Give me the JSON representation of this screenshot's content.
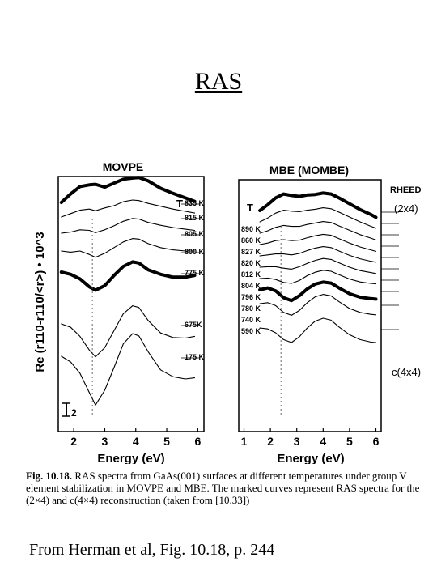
{
  "slide": {
    "title": "RAS",
    "citation": "From Herman et al, Fig. 10.18, p. 244"
  },
  "caption": {
    "fig_no": "Fig. 10.18.",
    "text": "RAS spectra from GaAs(001) surfaces at different temperatures under group V element stabilization in MOVPE and MBE. The marked curves represent RAS spectra for the (2×4) and c(4×4) reconstruction (taken from [10.33])"
  },
  "chart_data": [
    {
      "type": "line",
      "title": "MOVPE",
      "xlabel": "Energy (eV)",
      "ylabel": "Re (r110-r110/<r>) • 10^3",
      "xlim": [
        1.5,
        6.2
      ],
      "xticks": [
        2,
        3,
        4,
        5,
        6
      ],
      "scale_bar_label": "2",
      "legend_header": "T",
      "series": [
        {
          "name": "835 K",
          "bold": true,
          "x": [
            1.6,
            1.9,
            2.2,
            2.5,
            2.7,
            3.0,
            3.3,
            3.6,
            3.9,
            4.1,
            4.4,
            4.8,
            5.2,
            5.6,
            5.9
          ],
          "y": [
            0.0,
            1.5,
            2.8,
            3.1,
            3.2,
            2.7,
            3.4,
            4.1,
            4.3,
            4.4,
            3.8,
            2.5,
            1.6,
            0.8,
            0.2
          ]
        },
        {
          "name": "815 K",
          "bold": false,
          "x": [
            1.6,
            1.9,
            2.2,
            2.5,
            2.7,
            3.0,
            3.3,
            3.6,
            3.9,
            4.1,
            4.4,
            4.8,
            5.2,
            5.6,
            5.9
          ],
          "y": [
            0.0,
            0.6,
            1.2,
            1.4,
            1.1,
            1.6,
            2.0,
            2.7,
            3.0,
            2.9,
            2.4,
            1.9,
            1.4,
            1.0,
            0.7
          ]
        },
        {
          "name": "805 K",
          "bold": false,
          "x": [
            1.6,
            1.9,
            2.2,
            2.5,
            2.7,
            3.0,
            3.3,
            3.6,
            3.9,
            4.1,
            4.4,
            4.8,
            5.2,
            5.6,
            5.9
          ],
          "y": [
            0.0,
            0.2,
            0.6,
            0.5,
            0.1,
            0.6,
            1.3,
            2.1,
            2.6,
            2.5,
            1.9,
            1.4,
            1.0,
            0.7,
            0.5
          ]
        },
        {
          "name": "800 K",
          "bold": false,
          "x": [
            1.6,
            1.9,
            2.2,
            2.5,
            2.7,
            3.0,
            3.3,
            3.6,
            3.9,
            4.1,
            4.4,
            4.8,
            5.2,
            5.6,
            5.9
          ],
          "y": [
            0.0,
            -0.2,
            0.0,
            -0.6,
            -1.1,
            -0.4,
            0.6,
            1.6,
            2.2,
            2.1,
            1.3,
            0.6,
            0.2,
            0.0,
            0.0
          ]
        },
        {
          "name": "775 K",
          "bold": true,
          "x": [
            1.6,
            1.9,
            2.2,
            2.5,
            2.7,
            3.0,
            3.3,
            3.6,
            3.9,
            4.1,
            4.4,
            4.8,
            5.2,
            5.6,
            5.9
          ],
          "y": [
            0.0,
            -0.4,
            -1.2,
            -2.6,
            -3.2,
            -2.4,
            -0.6,
            1.0,
            1.8,
            1.6,
            0.4,
            -0.4,
            -0.9,
            -0.9,
            -0.6
          ]
        },
        {
          "name": "675K",
          "bold": false,
          "x": [
            1.6,
            1.9,
            2.2,
            2.5,
            2.7,
            3.0,
            3.3,
            3.6,
            3.9,
            4.1,
            4.4,
            4.8,
            5.2,
            5.6,
            5.9
          ],
          "y": [
            0.0,
            -0.6,
            -2.2,
            -4.6,
            -5.8,
            -4.2,
            -1.2,
            1.8,
            3.2,
            2.9,
            0.6,
            -1.6,
            -2.4,
            -2.5,
            -2.2
          ]
        },
        {
          "name": "175 K",
          "bold": false,
          "x": [
            1.6,
            1.9,
            2.2,
            2.5,
            2.7,
            3.0,
            3.3,
            3.6,
            3.9,
            4.1,
            4.4,
            4.8,
            5.2,
            5.6,
            5.9
          ],
          "y": [
            0.0,
            -1.0,
            -3.0,
            -6.4,
            -8.6,
            -6.0,
            -2.0,
            2.2,
            4.0,
            3.6,
            0.8,
            -2.4,
            -3.6,
            -4.0,
            -3.8
          ]
        }
      ]
    },
    {
      "type": "line",
      "title": "MBE (MOMBE)",
      "xlabel": "Energy (eV)",
      "xlim": [
        0.8,
        6.2
      ],
      "xticks": [
        1,
        2,
        3,
        4,
        5,
        6
      ],
      "legend_header": "T",
      "annotations": [
        "RHEED",
        "(2x4)",
        "c(4x4)"
      ],
      "series": [
        {
          "name": "890 K",
          "bold": true,
          "x": [
            1.6,
            1.9,
            2.2,
            2.5,
            2.8,
            3.1,
            3.4,
            3.7,
            4.0,
            4.3,
            4.6,
            5.0,
            5.4,
            5.8,
            6.0
          ],
          "y": [
            0.0,
            1.2,
            2.6,
            3.4,
            3.1,
            2.9,
            3.2,
            3.3,
            3.6,
            3.4,
            2.6,
            1.4,
            0.2,
            -0.8,
            -1.4
          ]
        },
        {
          "name": "860 K",
          "bold": false,
          "x": [
            1.6,
            1.9,
            2.2,
            2.5,
            2.8,
            3.1,
            3.4,
            3.7,
            4.0,
            4.3,
            4.6,
            5.0,
            5.4,
            5.8,
            6.0
          ],
          "y": [
            0.0,
            0.8,
            1.8,
            2.4,
            2.2,
            2.1,
            2.4,
            2.6,
            2.9,
            2.7,
            2.0,
            1.0,
            0.0,
            -0.9,
            -1.3
          ]
        },
        {
          "name": "827 K",
          "bold": false,
          "x": [
            1.6,
            1.9,
            2.2,
            2.5,
            2.8,
            3.1,
            3.4,
            3.7,
            4.0,
            4.3,
            4.6,
            5.0,
            5.4,
            5.8,
            6.0
          ],
          "y": [
            0.0,
            0.5,
            1.2,
            1.6,
            1.4,
            1.4,
            1.8,
            2.1,
            2.4,
            2.2,
            1.5,
            0.6,
            -0.3,
            -1.0,
            -1.4
          ]
        },
        {
          "name": "820 K",
          "bold": false,
          "x": [
            1.6,
            1.9,
            2.2,
            2.5,
            2.8,
            3.1,
            3.4,
            3.7,
            4.0,
            4.3,
            4.6,
            5.0,
            5.4,
            5.8,
            6.0
          ],
          "y": [
            0.0,
            0.3,
            0.8,
            1.0,
            0.8,
            0.9,
            1.4,
            1.8,
            2.1,
            1.9,
            1.2,
            0.3,
            -0.5,
            -1.1,
            -1.4
          ]
        },
        {
          "name": "812 K",
          "bold": false,
          "x": [
            1.6,
            1.9,
            2.2,
            2.5,
            2.8,
            3.1,
            3.4,
            3.7,
            4.0,
            4.3,
            4.6,
            5.0,
            5.4,
            5.8,
            6.0
          ],
          "y": [
            0.0,
            0.2,
            0.4,
            0.4,
            0.2,
            0.5,
            1.1,
            1.6,
            1.9,
            1.7,
            1.0,
            0.1,
            -0.6,
            -1.1,
            -1.3
          ]
        },
        {
          "name": "804 K",
          "bold": false,
          "x": [
            1.6,
            1.9,
            2.2,
            2.5,
            2.8,
            3.1,
            3.4,
            3.7,
            4.0,
            4.3,
            4.6,
            5.0,
            5.4,
            5.8,
            6.0
          ],
          "y": [
            0.0,
            0.1,
            0.1,
            -0.2,
            -0.4,
            0.1,
            0.8,
            1.4,
            1.8,
            1.6,
            0.9,
            0.0,
            -0.7,
            -1.1,
            -1.3
          ]
        },
        {
          "name": "796 K",
          "bold": false,
          "x": [
            1.6,
            1.9,
            2.2,
            2.5,
            2.8,
            3.1,
            3.4,
            3.7,
            4.0,
            4.3,
            4.6,
            5.0,
            5.4,
            5.8,
            6.0
          ],
          "y": [
            0.0,
            0.1,
            -0.2,
            -0.8,
            -1.0,
            -0.4,
            0.6,
            1.3,
            1.7,
            1.5,
            0.8,
            -0.1,
            -0.7,
            -1.0,
            -1.1
          ]
        },
        {
          "name": "780 K",
          "bold": true,
          "x": [
            1.6,
            1.9,
            2.2,
            2.5,
            2.8,
            3.1,
            3.4,
            3.7,
            4.0,
            4.3,
            4.6,
            5.0,
            5.4,
            5.8,
            6.0
          ],
          "y": [
            0.0,
            0.4,
            -0.2,
            -1.6,
            -2.2,
            -1.2,
            0.2,
            1.2,
            1.6,
            1.4,
            0.4,
            -0.8,
            -1.5,
            -1.8,
            -1.9
          ]
        },
        {
          "name": "740 K",
          "bold": false,
          "x": [
            1.6,
            1.9,
            2.2,
            2.5,
            2.8,
            3.1,
            3.4,
            3.7,
            4.0,
            4.3,
            4.6,
            5.0,
            5.4,
            5.8,
            6.0
          ],
          "y": [
            0.0,
            0.2,
            -0.4,
            -1.8,
            -2.4,
            -1.4,
            0.2,
            1.4,
            1.9,
            1.6,
            0.4,
            -1.0,
            -1.8,
            -2.2,
            -2.3
          ]
        },
        {
          "name": "590 K",
          "bold": false,
          "x": [
            1.6,
            1.9,
            2.2,
            2.5,
            2.8,
            3.1,
            3.4,
            3.7,
            4.0,
            4.3,
            4.6,
            5.0,
            5.4,
            5.8,
            6.0
          ],
          "y": [
            0.0,
            -0.2,
            -1.0,
            -2.4,
            -3.0,
            -1.8,
            0.0,
            1.4,
            2.0,
            1.6,
            0.2,
            -1.4,
            -2.4,
            -2.9,
            -3.0
          ]
        }
      ]
    }
  ]
}
